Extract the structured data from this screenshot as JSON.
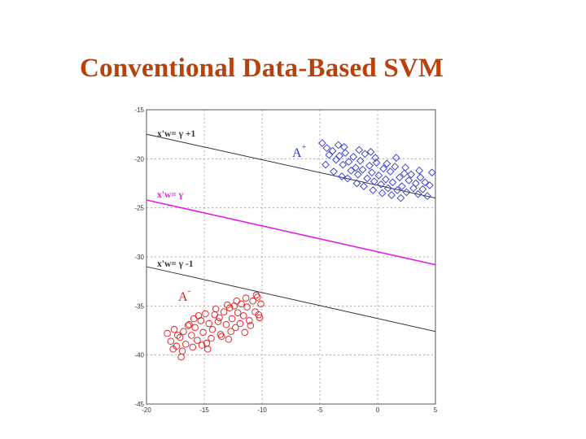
{
  "slide": {
    "title": "Conventional Data-Based SVM"
  },
  "chart_data": {
    "type": "scatter",
    "title": "Conventional Data-Based SVM",
    "xlabel": "",
    "ylabel": "",
    "xlim": [
      -20,
      5
    ],
    "ylim": [
      -45,
      -15
    ],
    "x_ticks": [
      -20,
      -15,
      -10,
      -5,
      0,
      5
    ],
    "y_ticks": [
      -15,
      -20,
      -25,
      -30,
      -35,
      -40,
      -45
    ],
    "grid": true,
    "colors": {
      "positive": "#2d37d6",
      "negative": "#e01818",
      "separator": "#e21ce2",
      "bound": "#333333"
    },
    "lines": [
      {
        "name": "x'w= γ +1",
        "color": "#333333",
        "points": [
          [
            -20,
            -17.5
          ],
          [
            5,
            -24.0
          ]
        ]
      },
      {
        "name": "x'w= γ",
        "color": "#e21ce2",
        "points": [
          [
            -20,
            -24.2
          ],
          [
            5,
            -30.8
          ]
        ]
      },
      {
        "name": "x'w= γ -1",
        "color": "#333333",
        "points": [
          [
            -20,
            -31.0
          ],
          [
            5,
            -37.6
          ]
        ]
      }
    ],
    "series": [
      {
        "name": "A+",
        "marker": "diamond",
        "color": "#2d37d6",
        "points": [
          [
            -4.8,
            -18.4
          ],
          [
            -4.4,
            -18.9
          ],
          [
            -4.2,
            -19.6
          ],
          [
            -3.9,
            -19.2
          ],
          [
            -3.6,
            -20.1
          ],
          [
            -3.3,
            -19.7
          ],
          [
            -3.0,
            -20.6
          ],
          [
            -2.8,
            -19.4
          ],
          [
            -2.5,
            -20.3
          ],
          [
            -2.3,
            -21.2
          ],
          [
            -2.1,
            -19.8
          ],
          [
            -1.9,
            -20.9
          ],
          [
            -1.7,
            -21.6
          ],
          [
            -1.5,
            -20.2
          ],
          [
            -1.3,
            -21.1
          ],
          [
            -1.1,
            -19.5
          ],
          [
            -0.9,
            -22.0
          ],
          [
            -0.7,
            -20.7
          ],
          [
            -0.5,
            -21.4
          ],
          [
            -0.3,
            -22.3
          ],
          [
            -0.1,
            -20.4
          ],
          [
            0.1,
            -21.7
          ],
          [
            0.3,
            -22.6
          ],
          [
            0.5,
            -21.0
          ],
          [
            0.7,
            -22.1
          ],
          [
            0.9,
            -23.0
          ],
          [
            1.1,
            -21.3
          ],
          [
            1.3,
            -22.4
          ],
          [
            1.5,
            -20.8
          ],
          [
            1.7,
            -23.2
          ],
          [
            1.9,
            -21.9
          ],
          [
            2.1,
            -22.8
          ],
          [
            2.3,
            -21.5
          ],
          [
            2.5,
            -23.4
          ],
          [
            2.7,
            -22.2
          ],
          [
            2.9,
            -21.6
          ],
          [
            3.1,
            -23.0
          ],
          [
            3.3,
            -22.5
          ],
          [
            3.5,
            -23.6
          ],
          [
            3.7,
            -21.9
          ],
          [
            3.9,
            -23.1
          ],
          [
            4.1,
            -22.4
          ],
          [
            4.3,
            -23.8
          ],
          [
            4.5,
            -22.7
          ],
          [
            4.7,
            -21.4
          ],
          [
            -4.5,
            -20.6
          ],
          [
            -3.8,
            -21.3
          ],
          [
            -3.1,
            -21.8
          ],
          [
            -2.6,
            -22.0
          ],
          [
            -1.8,
            -22.5
          ],
          [
            -1.2,
            -22.8
          ],
          [
            -0.4,
            -23.2
          ],
          [
            0.4,
            -23.5
          ],
          [
            1.2,
            -23.7
          ],
          [
            2.0,
            -24.0
          ],
          [
            -2.9,
            -18.8
          ],
          [
            -1.6,
            -19.1
          ],
          [
            -0.2,
            -19.9
          ],
          [
            0.8,
            -20.5
          ],
          [
            2.4,
            -20.9
          ],
          [
            3.6,
            -21.2
          ],
          [
            -3.4,
            -18.6
          ],
          [
            -0.6,
            -19.3
          ],
          [
            1.6,
            -19.9
          ]
        ]
      },
      {
        "name": "A-",
        "marker": "circle",
        "color": "#e01818",
        "points": [
          [
            -18.2,
            -37.8
          ],
          [
            -17.9,
            -38.6
          ],
          [
            -17.6,
            -37.4
          ],
          [
            -17.4,
            -39.1
          ],
          [
            -17.1,
            -38.2
          ],
          [
            -16.8,
            -37.6
          ],
          [
            -16.6,
            -38.9
          ],
          [
            -16.3,
            -36.9
          ],
          [
            -16.1,
            -38.0
          ],
          [
            -15.8,
            -37.2
          ],
          [
            -15.6,
            -38.5
          ],
          [
            -15.3,
            -36.5
          ],
          [
            -15.1,
            -37.7
          ],
          [
            -14.8,
            -38.8
          ],
          [
            -14.6,
            -36.8
          ],
          [
            -14.3,
            -37.4
          ],
          [
            -14.1,
            -35.9
          ],
          [
            -13.8,
            -36.6
          ],
          [
            -13.6,
            -37.9
          ],
          [
            -13.3,
            -35.6
          ],
          [
            -13.1,
            -36.9
          ],
          [
            -12.8,
            -35.2
          ],
          [
            -12.6,
            -36.3
          ],
          [
            -12.3,
            -37.2
          ],
          [
            -12.1,
            -35.7
          ],
          [
            -11.8,
            -34.8
          ],
          [
            -11.6,
            -36.0
          ],
          [
            -11.3,
            -35.1
          ],
          [
            -11.1,
            -36.5
          ],
          [
            -10.8,
            -34.5
          ],
          [
            -10.6,
            -35.6
          ],
          [
            -10.4,
            -34.1
          ],
          [
            -10.2,
            -36.2
          ],
          [
            -17.7,
            -39.4
          ],
          [
            -16.9,
            -39.6
          ],
          [
            -16.0,
            -39.2
          ],
          [
            -15.2,
            -39.0
          ],
          [
            -14.4,
            -38.3
          ],
          [
            -13.5,
            -38.1
          ],
          [
            -12.7,
            -37.6
          ],
          [
            -11.9,
            -36.8
          ],
          [
            -11.0,
            -37.0
          ],
          [
            -10.3,
            -35.9
          ],
          [
            -15.9,
            -36.3
          ],
          [
            -14.9,
            -35.8
          ],
          [
            -14.0,
            -35.3
          ],
          [
            -13.0,
            -34.9
          ],
          [
            -12.2,
            -34.5
          ],
          [
            -11.4,
            -34.2
          ],
          [
            -10.5,
            -33.9
          ],
          [
            -17.0,
            -40.2
          ],
          [
            -16.4,
            -37.0
          ],
          [
            -12.9,
            -38.4
          ],
          [
            -11.5,
            -37.7
          ],
          [
            -10.1,
            -34.8
          ],
          [
            -15.5,
            -36.0
          ],
          [
            -13.7,
            -36.2
          ],
          [
            -12.4,
            -35.0
          ],
          [
            -17.3,
            -38.0
          ],
          [
            -14.7,
            -39.4
          ]
        ]
      }
    ],
    "annotations": [
      {
        "text": "x'w= γ +1",
        "color": "#333333"
      },
      {
        "text": "x'w= γ",
        "color": "#e21ce2"
      },
      {
        "text": "x'w= γ -1",
        "color": "#333333"
      }
    ],
    "set_labels": [
      {
        "base": "A",
        "sup": "+",
        "color": "#2d37d6"
      },
      {
        "base": "A",
        "sup": "-",
        "color": "#e01818"
      }
    ]
  }
}
